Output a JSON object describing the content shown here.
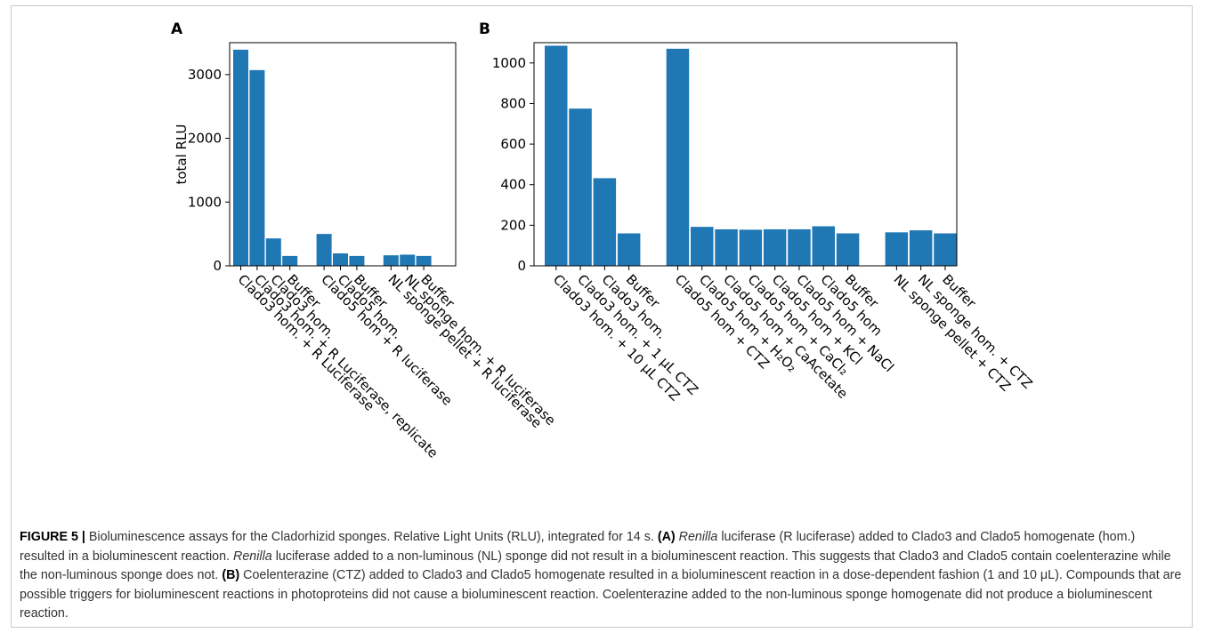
{
  "chart_data": [
    {
      "type": "bar",
      "panel": "A",
      "xlabel": "",
      "ylabel": "total RLU",
      "ylim": [
        0,
        3500
      ],
      "yticks": [
        0,
        1000,
        2000,
        3000
      ],
      "color": "#1f77b4",
      "categories": [
        "Clado3 hom. + R Luciferase",
        "Clado3 hom. + R Luciferase, replicate",
        "Clado3 hom.",
        "Buffer",
        "Clado5 hom + R luciferase",
        "Clado5 hom.",
        "Buffer",
        "NL sponge pellet + R luciferase",
        "NL sponge hom. + R luciferase",
        "Buffer"
      ],
      "values": [
        3390,
        3070,
        430,
        155,
        500,
        195,
        155,
        165,
        175,
        155
      ],
      "groups": [
        [
          0,
          1,
          2,
          3
        ],
        [
          4,
          5,
          6
        ],
        [
          7,
          8,
          9
        ]
      ],
      "grid": false
    },
    {
      "type": "bar",
      "panel": "B",
      "xlabel": "",
      "ylabel": "",
      "ylim": [
        0,
        1100
      ],
      "yticks": [
        0,
        200,
        400,
        600,
        800,
        1000
      ],
      "color": "#1f77b4",
      "categories": [
        "Clado3 hom. + 10 μL CTZ",
        "Clado3 hom. + 1 μL CTZ",
        "Clado3 hom.",
        "Buffer",
        "Clado5 hom + CTZ",
        "Clado5 hom + H₂O₂",
        "Clado5 hom + CaAcetate",
        "Clado5 hom + CaCl₂",
        "Clado5 hom + KCl",
        "Clado5 hom + NaCl",
        "Clado5 hom",
        "Buffer",
        "NL sponge pellet + CTZ",
        "NL sponge hom. + CTZ",
        "Buffer"
      ],
      "values": [
        1085,
        775,
        432,
        160,
        1070,
        192,
        180,
        178,
        180,
        180,
        195,
        160,
        165,
        175,
        160
      ],
      "groups": [
        [
          0,
          1,
          2,
          3
        ],
        [
          4,
          5,
          6,
          7,
          8,
          9,
          10,
          11
        ],
        [
          12,
          13,
          14
        ]
      ],
      "grid": false
    }
  ],
  "caption": {
    "label": "FIGURE 5 |",
    "text1": " Bioluminescence assays for the Cladorhizid sponges. Relative Light Units (RLU), integrated for 14 s. ",
    "a_label": "(A)",
    "text2": " ",
    "renilla1": "Renilla",
    "text3": " luciferase (R luciferase) added to Clado3 and Clado5 homogenate (hom.) resulted in a bioluminescent reaction. ",
    "renilla2": "Renilla",
    "text4": " luciferase added to a non-luminous (NL) sponge did not result in a bioluminescent reaction. This suggests that Clado3 and Clado5 contain coelenterazine while the non-luminous sponge does not. ",
    "b_label": "(B)",
    "text5": " Coelenterazine (CTZ) added to Clado3 and Clado5 homogenate resulted in a bioluminescent reaction in a dose-dependent fashion (1 and 10 μL). Compounds that are possible triggers for bioluminescent reactions in photoproteins did not cause a bioluminescent reaction. Coelenterazine added to the non-luminous sponge homogenate did not produce a bioluminescent reaction."
  }
}
